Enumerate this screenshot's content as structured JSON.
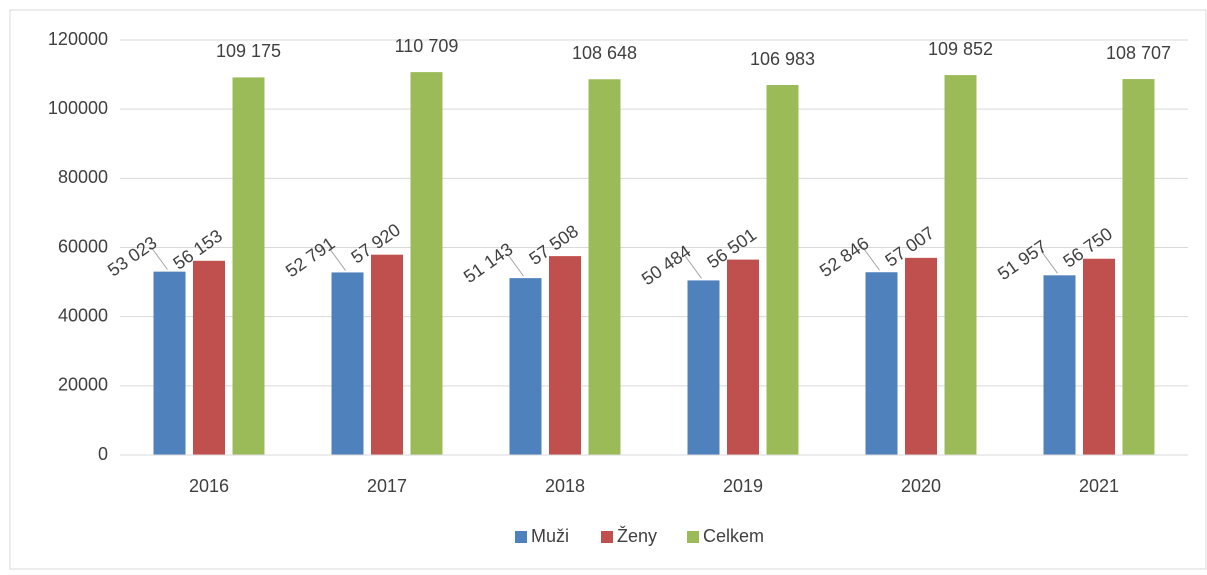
{
  "chart_data": {
    "type": "bar",
    "categories": [
      "2016",
      "2017",
      "2018",
      "2019",
      "2020",
      "2021"
    ],
    "series": [
      {
        "name": "Muži",
        "color": "#4f81bd",
        "values": [
          53023,
          52791,
          51143,
          50484,
          52846,
          51957
        ],
        "value_labels": [
          "53 023",
          "52 791",
          "51 143",
          "50 484",
          "52 846",
          "51 957"
        ]
      },
      {
        "name": "Ženy",
        "color": "#c0504d",
        "values": [
          56153,
          57920,
          57508,
          56501,
          57007,
          56750
        ],
        "value_labels": [
          "56 153",
          "57 920",
          "57 508",
          "56 501",
          "57 007",
          "56 750"
        ]
      },
      {
        "name": "Celkem",
        "color": "#9bbb59",
        "values": [
          109175,
          110709,
          108648,
          106983,
          109852,
          108707
        ],
        "value_labels": [
          "109 175",
          "110 709",
          "108 648",
          "106 983",
          "109 852",
          "108 707"
        ]
      }
    ],
    "ylim": [
      0,
      120000
    ],
    "yticks": [
      0,
      20000,
      40000,
      60000,
      80000,
      100000,
      120000
    ],
    "grid": true,
    "legend": "bottom"
  }
}
